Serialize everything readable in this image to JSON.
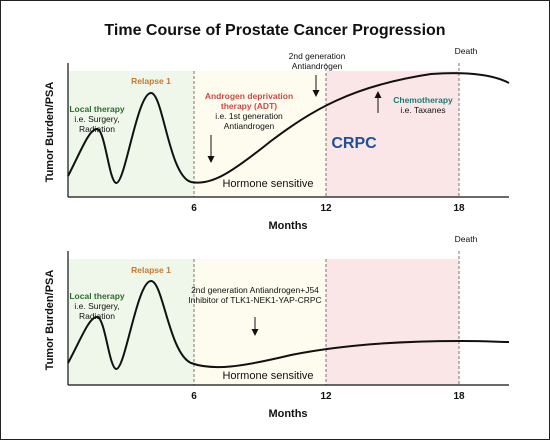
{
  "title": "Time Course of Prostate Cancer Progression",
  "colors": {
    "local": "#2e6b2e",
    "relapse": "#c8782a",
    "adt": "#d64541",
    "crpc": "#1f4e9a",
    "chemo": "#1a7a7a",
    "zone_green": "#eef7ea",
    "zone_yellow": "#fdfcef",
    "zone_pink": "#fbe6e7"
  },
  "ylabel": "Tumor Burden/PSA",
  "xlabel": "Months",
  "ticks": [
    "6",
    "12",
    "18"
  ],
  "top": {
    "local_title": "Local therapy",
    "local_line1": "i.e. Surgery,",
    "local_line2": "Radiation",
    "relapse": "Relapse 1",
    "adt_line1": "Androgen deprivation",
    "adt_line2": "therapy (ADT)",
    "adt_line3": "i.e. 1st generation",
    "adt_line4": "Antiandrogen",
    "second_line1": "2nd generation",
    "second_line2": "Antiandrogen",
    "death": "Death",
    "chemo_title": "Chemotherapy",
    "chemo_line": "i.e. Taxanes",
    "crpc": "CRPC",
    "hormone": "Hormone sensitive"
  },
  "bottom": {
    "local_title": "Local therapy",
    "local_line1": "i.e. Surgery,",
    "local_line2": "Radiation",
    "relapse": "Relapse 1",
    "treat_line1": "2nd generation Antiandrogen+J54",
    "treat_line2": "Inhibitor of TLK1-NEK1-YAP-CRPC",
    "death": "Death",
    "hormone": "Hormone sensitive"
  }
}
